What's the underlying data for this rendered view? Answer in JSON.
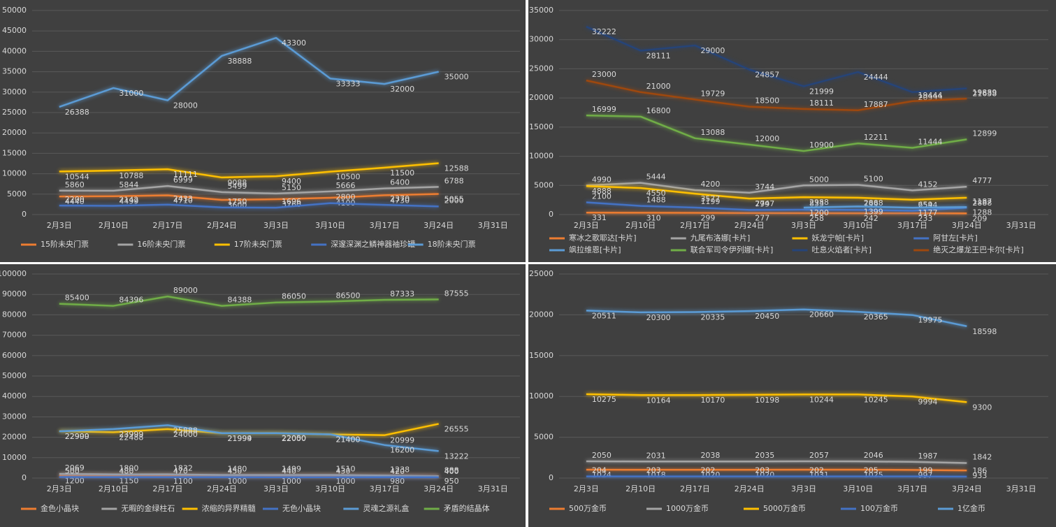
{
  "chart_data": [
    {
      "type": "line",
      "categories": [
        "2月3日",
        "2月10日",
        "2月17日",
        "2月24日",
        "3月3日",
        "3月10日",
        "3月17日",
        "3月24日",
        "3月31日"
      ],
      "ylim": [
        0,
        50000
      ],
      "yticks": [
        0,
        5000,
        10000,
        15000,
        20000,
        25000,
        30000,
        35000,
        40000,
        45000,
        50000
      ],
      "grid": true,
      "series": [
        {
          "name": "15阶未央门票",
          "color": "#ed7d31",
          "values": [
            4440,
            4499,
            4710,
            3600,
            3760,
            4100,
            4730,
            5055,
            null
          ]
        },
        {
          "name": "16阶未央门票",
          "color": "#a5a5a5",
          "values": [
            5860,
            5844,
            6999,
            5499,
            5150,
            5666,
            6400,
            6788,
            null
          ]
        },
        {
          "name": "17阶未央门票",
          "color": "#ffc000",
          "values": [
            10544,
            10788,
            11111,
            9088,
            9400,
            10500,
            11500,
            12588,
            null
          ]
        },
        {
          "name": "深邃深渊之鳞神器袖珍罐",
          "color": "#4472c4",
          "values": [
            2200,
            2142,
            2433,
            1750,
            1696,
            2800,
            2370,
            2000,
            null
          ]
        },
        {
          "name": "18阶未央门票",
          "color": "#5b9bd5",
          "values": [
            26388,
            31000,
            28000,
            38888,
            43300,
            33333,
            32000,
            35000,
            null
          ]
        }
      ]
    },
    {
      "type": "line",
      "categories": [
        "2月3日",
        "2月10日",
        "2月17日",
        "2月24日",
        "3月3日",
        "3月10日",
        "3月17日",
        "3月24日",
        "3月31日"
      ],
      "ylim": [
        0,
        35000
      ],
      "yticks": [
        0,
        5000,
        10000,
        15000,
        20000,
        25000,
        30000,
        35000
      ],
      "grid": true,
      "series": [
        {
          "name": "寒冰之歌耶达[卡片]",
          "color": "#ed7d31",
          "values": [
            331,
            310,
            299,
            277,
            258,
            242,
            233,
            209,
            null
          ]
        },
        {
          "name": "九尾布洛娜[卡片]",
          "color": "#a5a5a5",
          "values": [
            4990,
            5444,
            4200,
            3744,
            5000,
            5100,
            4152,
            4777,
            null
          ]
        },
        {
          "name": "妖龙宁帕[卡片]",
          "color": "#ffc000",
          "values": [
            4888,
            4550,
            3577,
            2747,
            2988,
            2888,
            2544,
            2888,
            null
          ]
        },
        {
          "name": "阿甘左[卡片]",
          "color": "#4472c4",
          "values": [
            2100,
            1488,
            1199,
            799,
            833,
            799,
            659,
            1187,
            null
          ]
        },
        {
          "name": "飒拉维恩[卡片]",
          "color": "#5b9bd5",
          "values": [
            null,
            null,
            null,
            null,
            1200,
            1399,
            1177,
            1288,
            null
          ]
        },
        {
          "name": "联合军司令伊列娜[卡片]",
          "color": "#70ad47",
          "values": [
            16999,
            16800,
            13088,
            12000,
            10900,
            12211,
            11444,
            12899,
            null
          ]
        },
        {
          "name": "吐息火焰者[卡片]",
          "color": "#264478",
          "values": [
            32222,
            28111,
            29000,
            24857,
            21999,
            24444,
            20999,
            21638,
            null
          ]
        },
        {
          "name": "绝灭之爆龙王巴卡尔[卡片]",
          "color": "#9e480e",
          "values": [
            23000,
            21000,
            19729,
            18500,
            18111,
            17887,
            19444,
            19889,
            null
          ]
        }
      ]
    },
    {
      "type": "line",
      "categories": [
        "2月3日",
        "2月10日",
        "2月17日",
        "2月24日",
        "3月3日",
        "3月10日",
        "3月17日",
        "3月24日",
        "3月31日"
      ],
      "ylim": [
        0,
        100000
      ],
      "yticks": [
        0,
        10000,
        20000,
        30000,
        40000,
        50000,
        60000,
        70000,
        80000,
        90000,
        100000
      ],
      "grid": true,
      "series": [
        {
          "name": "金色小晶块",
          "color": "#ed7d31",
          "values": [
            1200,
            1150,
            1100,
            1000,
            1000,
            1000,
            980,
            950,
            null
          ]
        },
        {
          "name": "无暇的金绿柱石",
          "color": "#a5a5a5",
          "values": [
            2069,
            1800,
            1832,
            1480,
            1499,
            1510,
            1238,
            888,
            null
          ]
        },
        {
          "name": "浓缩的异界精髓",
          "color": "#ffc000",
          "values": [
            22999,
            22488,
            24000,
            21999,
            22050,
            21400,
            20999,
            26555,
            null
          ]
        },
        {
          "name": "无色小晶块",
          "color": "#4472c4",
          "values": [
            500,
            480,
            470,
            450,
            440,
            430,
            420,
            400,
            null
          ]
        },
        {
          "name": "灵魂之源礼盒",
          "color": "#5b9bd5",
          "values": [
            22900,
            23999,
            25888,
            21994,
            22000,
            21400,
            16200,
            13222,
            null
          ]
        },
        {
          "name": "矛盾的结晶体",
          "color": "#70ad47",
          "values": [
            85400,
            84396,
            89000,
            84388,
            86050,
            86500,
            87333,
            87555,
            null
          ]
        }
      ]
    },
    {
      "type": "line",
      "categories": [
        "2月3日",
        "2月10日",
        "2月17日",
        "2月24日",
        "3月3日",
        "3月10日",
        "3月17日",
        "3月24日",
        "3月31日"
      ],
      "ylim": [
        0,
        25000
      ],
      "yticks": [
        0,
        5000,
        10000,
        15000,
        20000,
        25000
      ],
      "grid": true,
      "series": [
        {
          "name": "500万金币",
          "color": "#ed7d31",
          "values": [
            1024,
            1018,
            1020,
            1020,
            1031,
            1025,
            997,
            933,
            null
          ]
        },
        {
          "name": "1000万金币",
          "color": "#a5a5a5",
          "values": [
            2050,
            2031,
            2038,
            2035,
            2057,
            2046,
            1987,
            1842,
            null
          ]
        },
        {
          "name": "5000万金币",
          "color": "#ffc000",
          "values": [
            10275,
            10164,
            10170,
            10198,
            10244,
            10245,
            9994,
            9300,
            null
          ]
        },
        {
          "name": "100万金币",
          "color": "#4472c4",
          "values": [
            204,
            203,
            202,
            203,
            202,
            205,
            199,
            186,
            null
          ]
        },
        {
          "name": "1亿金币",
          "color": "#5b9bd5",
          "values": [
            20511,
            20300,
            20335,
            20450,
            20660,
            20365,
            19975,
            18598,
            null
          ]
        }
      ]
    }
  ]
}
